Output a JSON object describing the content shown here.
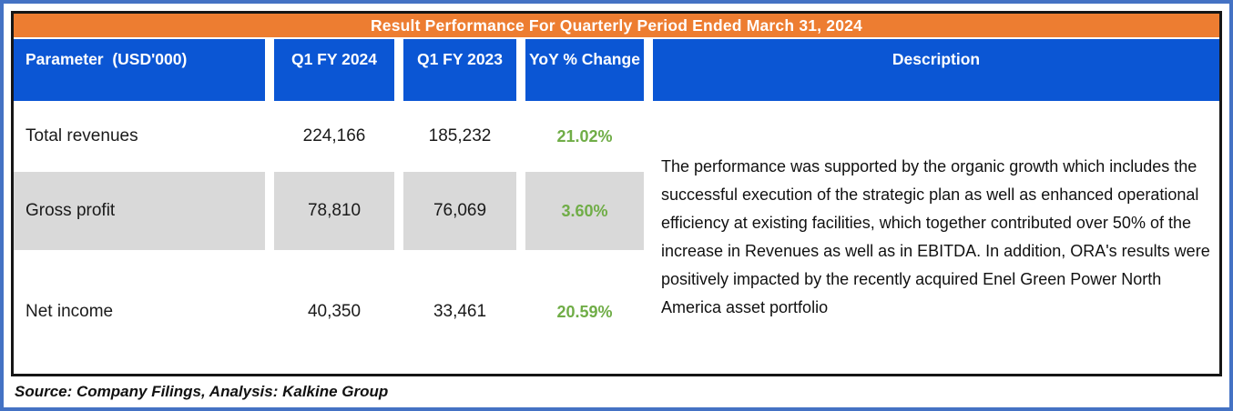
{
  "title": "Result Performance For Quarterly Period Ended March 31, 2024",
  "table": {
    "headers": [
      "Parameter  (USD'000)",
      "Q1 FY 2024",
      "Q1 FY 2023",
      "YoY % Change",
      "Description"
    ],
    "rows": [
      {
        "parameter": "Total revenues",
        "q1_fy2024": "224,166",
        "q1_fy2023": "185,232",
        "yoy_change": "21.02%"
      },
      {
        "parameter": "Gross profit",
        "q1_fy2024": "78,810",
        "q1_fy2023": "76,069",
        "yoy_change": "3.60%"
      },
      {
        "parameter": "Net income",
        "q1_fy2024": "40,350",
        "q1_fy2023": "33,461",
        "yoy_change": "20.59%"
      }
    ],
    "description": "The performance was supported by the organic growth which includes the successful execution of the strategic plan as well as enhanced operational efficiency at existing facilities, which together contributed over 50% of the increase in Revenues as well as in EBITDA. In addition, ORA's results were positively impacted by the recently acquired Enel Green Power North America asset portfolio"
  },
  "footer": {
    "source": "Source: Company Filings, Analysis: Kalkine Group"
  },
  "colors": {
    "title_bg": "#ED7D31",
    "header_bg": "#0B56D4",
    "positive_green": "#70AD47",
    "band_gray": "#D9D9D9",
    "outer_frame_blue": "#4472C4",
    "table_border": "#161616"
  },
  "chart_data": {
    "type": "table",
    "title": "Result Performance For Quarterly Period Ended March 31, 2024",
    "columns": [
      "Parameter (USD'000)",
      "Q1 FY 2024",
      "Q1 FY 2023",
      "YoY % Change",
      "Description"
    ],
    "rows": [
      [
        "Total revenues",
        224166,
        185232,
        "21.02%"
      ],
      [
        "Gross profit",
        78810,
        76069,
        "3.60%"
      ],
      [
        "Net income",
        40350,
        33461,
        "20.59%"
      ]
    ],
    "description": "The performance was supported by the organic growth which includes the successful execution of the strategic plan as well as enhanced operational efficiency at existing facilities, which together contributed over 50% of the increase in Revenues as well as in EBITDA. In addition, ORA's results were positively impacted by the recently acquired Enel Green Power North America asset portfolio",
    "source": "Source: Company Filings, Analysis: Kalkine Group"
  }
}
